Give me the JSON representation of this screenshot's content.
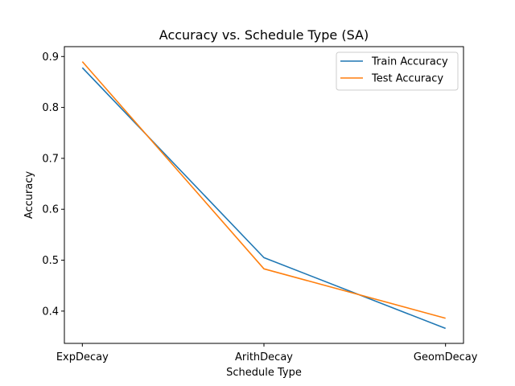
{
  "chart_data": {
    "type": "line",
    "title": "Accuracy vs. Schedule Type (SA)",
    "xlabel": "Schedule Type",
    "ylabel": "Accuracy",
    "categories": [
      "ExpDecay",
      "ArithDecay",
      "GeomDecay"
    ],
    "series": [
      {
        "name": "Train Accuracy",
        "color": "#1f77b4",
        "values": [
          0.878,
          0.505,
          0.366
        ]
      },
      {
        "name": "Test Accuracy",
        "color": "#ff7f0e",
        "values": [
          0.89,
          0.483,
          0.386
        ]
      }
    ],
    "ylim": [
      0.3366,
      0.9194
    ],
    "yticks": [
      0.4,
      0.5,
      0.6,
      0.7,
      0.8,
      0.9
    ],
    "grid": false,
    "legend_position": "top-right"
  }
}
